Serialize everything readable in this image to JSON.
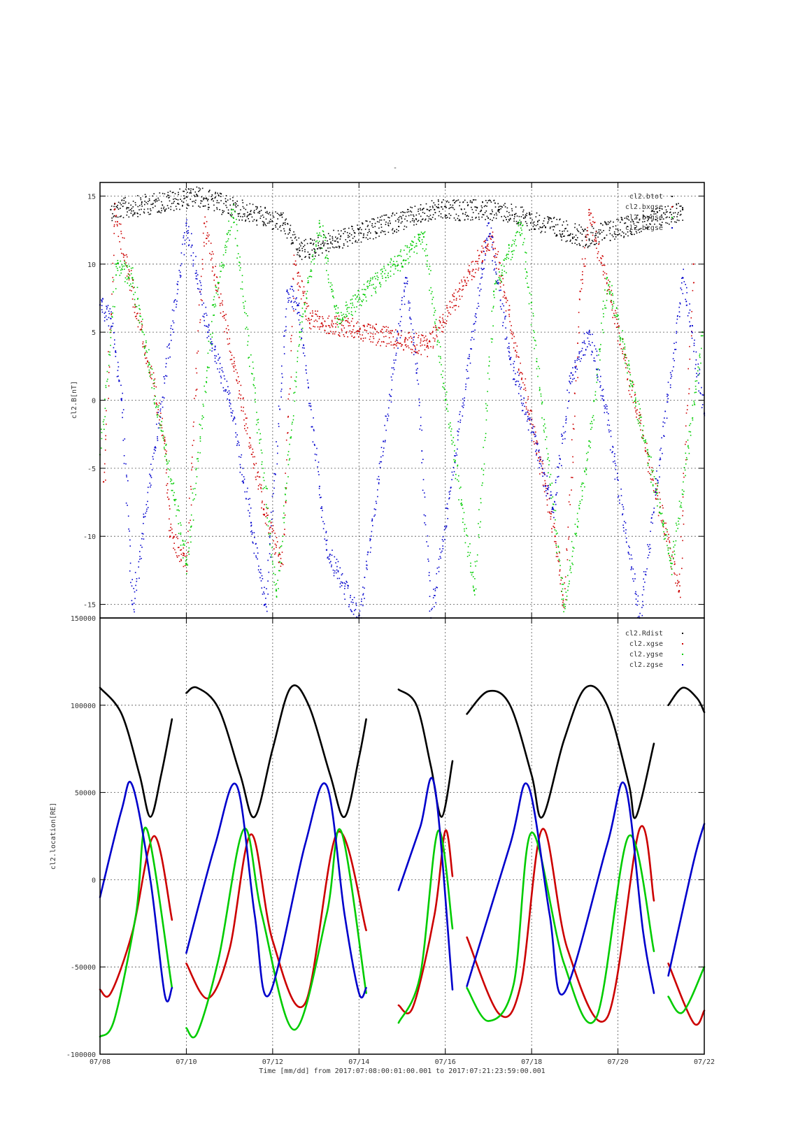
{
  "figure": {
    "top_title": "-",
    "xlabel": "Time [mm/dd]  from 2017:07:08:00:01:00.001  to  2017:07:21:23:59:00.001",
    "xlim": [
      "2017-07-08T00:00",
      "2017-07-22T00:00"
    ],
    "x_ticks": [
      {
        "date": "2017-07-08T00:00",
        "label": "07/08"
      },
      {
        "date": "2017-07-10T00:00",
        "label": "07/10"
      },
      {
        "date": "2017-07-12T00:00",
        "label": "07/12"
      },
      {
        "date": "2017-07-14T00:00",
        "label": "07/14"
      },
      {
        "date": "2017-07-16T00:00",
        "label": "07/16"
      },
      {
        "date": "2017-07-18T00:00",
        "label": "07/18"
      },
      {
        "date": "2017-07-20T00:00",
        "label": "07/20"
      },
      {
        "date": "2017-07-22T00:00",
        "label": "07/22"
      }
    ]
  },
  "colors": {
    "black": "#000000",
    "red": "#cc0000",
    "green": "#00cc00",
    "blue": "#0000cc",
    "grid": "#555555"
  },
  "chart_data": [
    {
      "type": "scatter",
      "title": "",
      "ylabel": "cl2.B[nT]",
      "ylim": [
        -16,
        16
      ],
      "y_ticks": [
        -15,
        -10,
        -5,
        0,
        5,
        10,
        15
      ],
      "legend_position": "top-right",
      "grid": true,
      "series": [
        {
          "name": "cl2.btot",
          "color": "black",
          "x": [
            "2017-07-08T06:00",
            "2017-07-10T06:00",
            "2017-07-12T06:00",
            "2017-07-12T15:00",
            "2017-07-15T18:00",
            "2017-07-17T06:00",
            "2017-07-19T06:00",
            "2017-07-21T12:00"
          ],
          "y": [
            14,
            15,
            13,
            11,
            14,
            14,
            12,
            14
          ]
        },
        {
          "name": "cl2.bxgse",
          "color": "red",
          "x": [
            "2017-07-08T02:00",
            "2017-07-08T08:00",
            "2017-07-09T12:00",
            "2017-07-09T15:00",
            "2017-07-10T00:00",
            "2017-07-10T10:00",
            "2017-07-11T19:00",
            "2017-07-12T05:00",
            "2017-07-12T12:00",
            "2017-07-12T20:00",
            "2017-07-15T14:00",
            "2017-07-17T02:00",
            "2017-07-18T13:00",
            "2017-07-18T18:00",
            "2017-07-19T03:00",
            "2017-07-19T08:00",
            "2017-07-21T10:00",
            "2017-07-21T18:00"
          ],
          "y": [
            -6,
            14,
            -3,
            -10,
            -12,
            13,
            -8,
            -12,
            10,
            6,
            4,
            12,
            -10,
            -15,
            8,
            14,
            -14,
            10
          ]
        },
        {
          "name": "cl2.bygse",
          "color": "green",
          "x": [
            "2017-07-08T00:00",
            "2017-07-08T09:00",
            "2017-07-08T18:00",
            "2017-07-10T00:00",
            "2017-07-10T15:00",
            "2017-07-11T02:00",
            "2017-07-12T02:00",
            "2017-07-12T15:00",
            "2017-07-13T02:00",
            "2017-07-13T12:00",
            "2017-07-15T12:00",
            "2017-07-16T00:00",
            "2017-07-16T16:00",
            "2017-07-17T03:00",
            "2017-07-17T18:00",
            "2017-07-18T18:00",
            "2017-07-19T08:00",
            "2017-07-19T18:00",
            "2017-07-21T06:00",
            "2017-07-21T23:00"
          ],
          "y": [
            -4,
            10,
            9,
            -12,
            7,
            14,
            -14,
            5,
            13,
            6,
            12,
            0,
            -14,
            8,
            13,
            -15,
            -3,
            9,
            -12,
            5
          ]
        },
        {
          "name": "cl2.bzgse",
          "color": "blue",
          "x": [
            "2017-07-08T00:00",
            "2017-07-08T06:00",
            "2017-07-08T12:00",
            "2017-07-08T18:00",
            "2017-07-10T00:00",
            "2017-07-10T12:00",
            "2017-07-11T00:00",
            "2017-07-11T12:00",
            "2017-07-11T20:00",
            "2017-07-12T08:00",
            "2017-07-12T14:00",
            "2017-07-13T06:00",
            "2017-07-14T00:00",
            "2017-07-15T02:00",
            "2017-07-15T08:00",
            "2017-07-15T16:00",
            "2017-07-17T00:00",
            "2017-07-17T12:00",
            "2017-07-18T12:00",
            "2017-07-18T22:00",
            "2017-07-19T08:00",
            "2017-07-19T16:00",
            "2017-07-20T12:00",
            "2017-07-21T12:00",
            "2017-07-22T00:00"
          ],
          "y": [
            7,
            6,
            0,
            -15,
            13,
            5,
            0,
            -9,
            -15,
            8,
            7,
            -11,
            -16,
            9,
            2,
            -16,
            13,
            3,
            -8,
            2,
            5,
            0,
            -16,
            9,
            -1
          ]
        }
      ]
    },
    {
      "type": "line",
      "title": "",
      "ylabel": "cl2.location[RE]",
      "ylim": [
        -100000,
        150000
      ],
      "y_ticks": [
        {
          "value": 150000,
          "label": "150000"
        },
        {
          "value": 100000,
          "label": "100000"
        },
        {
          "value": 50000,
          "label": "50000"
        },
        {
          "value": 0,
          "label": "0"
        },
        {
          "value": -50000,
          "label": "-50000"
        },
        {
          "value": -100000,
          "label": "-100000"
        }
      ],
      "legend_position": "top-right",
      "grid": true,
      "series": [
        {
          "name": "cl2.Rdist",
          "color": "black",
          "segments": [
            {
              "x": [
                "2017-07-08T00:00",
                "2017-07-08T12:00",
                "2017-07-08T22:00",
                "2017-07-09T04:00",
                "2017-07-09T10:00",
                "2017-07-09T16:00"
              ],
              "y": [
                110000,
                95000,
                60000,
                36000,
                60000,
                92000
              ]
            },
            {
              "x": [
                "2017-07-10T00:00",
                "2017-07-10T06:00",
                "2017-07-10T18:00",
                "2017-07-11T06:00",
                "2017-07-11T14:00",
                "2017-07-12T00:00",
                "2017-07-12T10:00",
                "2017-07-12T20:00",
                "2017-07-13T08:00",
                "2017-07-13T16:00",
                "2017-07-14T00:00",
                "2017-07-14T04:00"
              ],
              "y": [
                107000,
                110000,
                98000,
                60000,
                36000,
                75000,
                110000,
                100000,
                60000,
                36000,
                70000,
                92000
              ]
            },
            {
              "x": [
                "2017-07-14T22:00",
                "2017-07-15T08:00",
                "2017-07-15T16:00",
                "2017-07-15T22:00",
                "2017-07-16T04:00"
              ],
              "y": [
                109000,
                100000,
                65000,
                36000,
                68000
              ]
            },
            {
              "x": [
                "2017-07-16T12:00",
                "2017-07-17T00:00",
                "2017-07-17T12:00",
                "2017-07-18T00:00",
                "2017-07-18T06:00",
                "2017-07-18T18:00",
                "2017-07-19T06:00",
                "2017-07-19T18:00",
                "2017-07-20T06:00",
                "2017-07-20T10:00",
                "2017-07-20T20:00"
              ],
              "y": [
                95000,
                108000,
                100000,
                60000,
                36000,
                80000,
                110000,
                100000,
                55000,
                36000,
                78000
              ]
            },
            {
              "x": [
                "2017-07-21T04:00",
                "2017-07-21T12:00",
                "2017-07-21T20:00",
                "2017-07-22T00:00"
              ],
              "y": [
                100000,
                110000,
                104000,
                96000
              ]
            }
          ]
        },
        {
          "name": "cl2.xgse",
          "color": "red",
          "segments": [
            {
              "x": [
                "2017-07-08T00:00",
                "2017-07-08T06:00",
                "2017-07-08T18:00",
                "2017-07-09T06:00",
                "2017-07-09T16:00"
              ],
              "y": [
                -63000,
                -65000,
                -30000,
                25000,
                -23000
              ]
            },
            {
              "x": [
                "2017-07-10T00:00",
                "2017-07-10T12:00",
                "2017-07-11T00:00",
                "2017-07-11T12:00",
                "2017-07-12T00:00",
                "2017-07-12T18:00",
                "2017-07-13T12:00",
                "2017-07-14T04:00"
              ],
              "y": [
                -48000,
                -68000,
                -40000,
                26000,
                -35000,
                -71000,
                27000,
                -29000
              ]
            },
            {
              "x": [
                "2017-07-14T22:00",
                "2017-07-15T06:00",
                "2017-07-15T18:00",
                "2017-07-16T00:00",
                "2017-07-16T04:00"
              ],
              "y": [
                -72000,
                -73000,
                -20000,
                28000,
                2000
              ]
            },
            {
              "x": [
                "2017-07-16T12:00",
                "2017-07-17T06:00",
                "2017-07-17T18:00",
                "2017-07-18T06:00",
                "2017-07-18T20:00",
                "2017-07-19T18:00",
                "2017-07-20T12:00",
                "2017-07-20T20:00"
              ],
              "y": [
                -33000,
                -77000,
                -60000,
                29000,
                -40000,
                -79000,
                29000,
                -12000
              ]
            },
            {
              "x": [
                "2017-07-21T04:00",
                "2017-07-21T18:00",
                "2017-07-22T00:00"
              ],
              "y": [
                -48000,
                -82000,
                -75000
              ]
            }
          ]
        },
        {
          "name": "cl2.ygse",
          "color": "green",
          "segments": [
            {
              "x": [
                "2017-07-08T00:00",
                "2017-07-08T08:00",
                "2017-07-08T20:00",
                "2017-07-09T02:00",
                "2017-07-09T16:00"
              ],
              "y": [
                -90000,
                -80000,
                -20000,
                29000,
                -62000
              ]
            },
            {
              "x": [
                "2017-07-10T00:00",
                "2017-07-10T06:00",
                "2017-07-10T18:00",
                "2017-07-11T08:00",
                "2017-07-11T18:00",
                "2017-07-12T12:00",
                "2017-07-13T06:00",
                "2017-07-13T14:00",
                "2017-07-14T04:00"
              ],
              "y": [
                -85000,
                -88000,
                -45000,
                29000,
                -20000,
                -86000,
                -20000,
                28000,
                -65000
              ]
            },
            {
              "x": [
                "2017-07-14T22:00",
                "2017-07-15T10:00",
                "2017-07-15T20:00",
                "2017-07-16T04:00"
              ],
              "y": [
                -82000,
                -55000,
                28000,
                -28000
              ]
            },
            {
              "x": [
                "2017-07-16T12:00",
                "2017-07-17T00:00",
                "2017-07-17T14:00",
                "2017-07-18T00:00",
                "2017-07-18T18:00",
                "2017-07-19T12:00",
                "2017-07-20T06:00",
                "2017-07-20T20:00"
              ],
              "y": [
                -62000,
                -81000,
                -60000,
                27000,
                -48000,
                -79000,
                25000,
                -41000
              ]
            },
            {
              "x": [
                "2017-07-21T04:00",
                "2017-07-21T12:00",
                "2017-07-22T00:00"
              ],
              "y": [
                -67000,
                -76000,
                -50000
              ]
            }
          ]
        },
        {
          "name": "cl2.zgse",
          "color": "blue",
          "segments": [
            {
              "x": [
                "2017-07-08T00:00",
                "2017-07-08T12:00",
                "2017-07-08T18:00",
                "2017-07-09T04:00",
                "2017-07-09T12:00",
                "2017-07-09T16:00"
              ],
              "y": [
                -10000,
                40000,
                54000,
                0,
                -66000,
                -62000
              ]
            },
            {
              "x": [
                "2017-07-10T00:00",
                "2017-07-10T16:00",
                "2017-07-11T04:00",
                "2017-07-11T14:00",
                "2017-07-11T22:00",
                "2017-07-12T18:00",
                "2017-07-13T06:00",
                "2017-07-13T16:00",
                "2017-07-14T00:00",
                "2017-07-14T04:00"
              ],
              "y": [
                -42000,
                20000,
                54000,
                -20000,
                -66000,
                20000,
                54000,
                -20000,
                -65000,
                -62000
              ]
            },
            {
              "x": [
                "2017-07-14T22:00",
                "2017-07-15T10:00",
                "2017-07-15T18:00",
                "2017-07-16T04:00"
              ],
              "y": [
                -6000,
                30000,
                54000,
                -63000
              ]
            },
            {
              "x": [
                "2017-07-16T12:00",
                "2017-07-17T12:00",
                "2017-07-17T22:00",
                "2017-07-18T10:00",
                "2017-07-18T18:00",
                "2017-07-19T18:00",
                "2017-07-20T04:00",
                "2017-07-20T14:00",
                "2017-07-20T20:00"
              ],
              "y": [
                -61000,
                20000,
                54000,
                -20000,
                -65000,
                20000,
                54000,
                -30000,
                -65000
              ]
            },
            {
              "x": [
                "2017-07-21T04:00",
                "2017-07-21T18:00",
                "2017-07-22T00:00"
              ],
              "y": [
                -55000,
                10000,
                32000
              ]
            }
          ]
        }
      ]
    }
  ]
}
